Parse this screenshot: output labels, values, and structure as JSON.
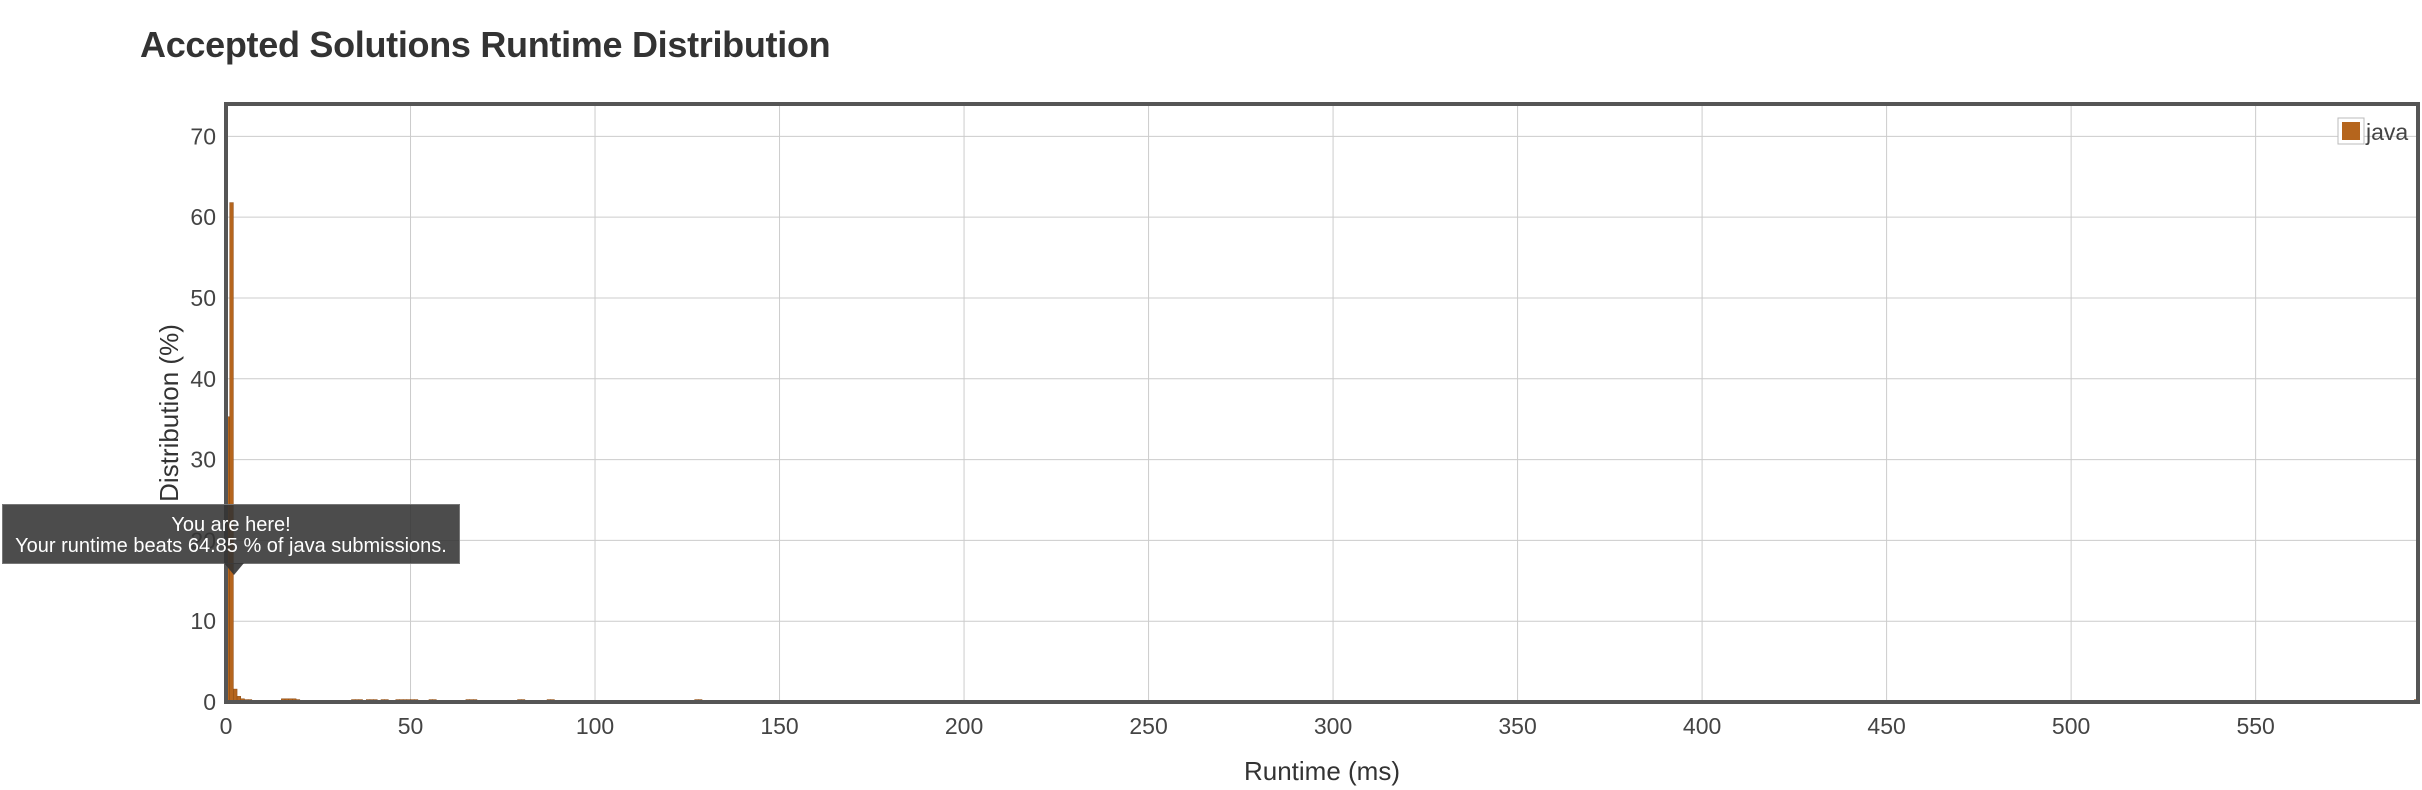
{
  "page": {
    "title": "Accepted Solutions Runtime Distribution"
  },
  "tooltip": {
    "line1": "You are here!",
    "line2": "Your runtime beats 64.85 % of java submissions."
  },
  "chart_data": {
    "type": "bar",
    "xlabel": "Runtime (ms)",
    "ylabel": "Distribution (%)",
    "xlim": [
      0,
      594
    ],
    "ylim": [
      0,
      74
    ],
    "xticks": [
      0,
      50,
      100,
      150,
      200,
      250,
      300,
      350,
      400,
      450,
      500,
      550
    ],
    "yticks": [
      0,
      10,
      20,
      30,
      40,
      50,
      60,
      70
    ],
    "grid": true,
    "legend_position": "top-right",
    "bar_color": "#b5651d",
    "series": [
      {
        "name": "java",
        "x": [
          0,
          1,
          2,
          3,
          4,
          5,
          6,
          15,
          16,
          17,
          18,
          19,
          34,
          35,
          36,
          38,
          39,
          40,
          42,
          43,
          46,
          47,
          48,
          49,
          50,
          51,
          55,
          56,
          65,
          66,
          67,
          79,
          80,
          87,
          88,
          127,
          128,
          593
        ],
        "values": [
          35.3,
          61.8,
          1.6,
          0.7,
          0.4,
          0.3,
          0.3,
          0.4,
          0.4,
          0.4,
          0.4,
          0.3,
          0.3,
          0.3,
          0.3,
          0.3,
          0.3,
          0.3,
          0.3,
          0.3,
          0.3,
          0.3,
          0.3,
          0.3,
          0.3,
          0.3,
          0.3,
          0.3,
          0.3,
          0.3,
          0.3,
          0.3,
          0.3,
          0.3,
          0.3,
          0.3,
          0.3,
          0.3
        ]
      }
    ],
    "highlight": {
      "x": 1,
      "label": "You are here!"
    }
  }
}
